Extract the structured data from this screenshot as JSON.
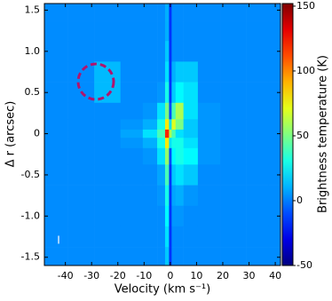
{
  "chart_data": {
    "type": "heatmap",
    "x_label": "Velocity (km s⁻¹)",
    "y_label": "Δ r (arcsec)",
    "colorbar_label": "Brightness temperature (K)",
    "annotation": "I",
    "colormap": "jet",
    "xlim": [
      -48,
      42
    ],
    "ylim": [
      -1.6,
      1.58
    ],
    "clim": [
      -50,
      152
    ],
    "xticks": [
      -40,
      -30,
      -20,
      -10,
      0,
      10,
      20,
      30,
      40
    ],
    "yticks": [
      1.5,
      {
        "value": 1,
        "label": "1.0"
      },
      0.5,
      0,
      -0.5,
      {
        "value": -1,
        "label": "-1.0"
      },
      -1.5
    ],
    "cticks": [
      -50,
      0,
      50,
      100,
      150
    ],
    "x": [
      -44,
      -34,
      -24,
      -14,
      -7,
      -3,
      -1,
      0,
      1,
      3,
      7,
      14,
      24,
      34,
      41
    ],
    "y": [
      1.5,
      1.25,
      1.0,
      0.75,
      0.5,
      0.25,
      0.1,
      0,
      -0.1,
      -0.25,
      -0.5,
      -0.75,
      -1.0,
      -1.25,
      -1.5
    ],
    "z": [
      [
        3,
        3,
        3,
        3,
        3,
        3,
        10,
        -15,
        3,
        3,
        3,
        3,
        3,
        3,
        3
      ],
      [
        3,
        3,
        3,
        3,
        3,
        3,
        10,
        -15,
        3,
        3,
        3,
        3,
        3,
        3,
        3
      ],
      [
        3,
        3,
        3,
        3,
        3,
        3,
        15,
        -15,
        3,
        3,
        3,
        3,
        3,
        3,
        3
      ],
      [
        3,
        3,
        12,
        3,
        3,
        3,
        20,
        -15,
        10,
        15,
        15,
        3,
        3,
        3,
        3
      ],
      [
        3,
        3,
        12,
        3,
        3,
        5,
        30,
        -15,
        15,
        25,
        20,
        3,
        3,
        3,
        3
      ],
      [
        3,
        3,
        3,
        3,
        5,
        20,
        50,
        -10,
        40,
        60,
        20,
        5,
        3,
        3,
        3
      ],
      [
        3,
        3,
        3,
        5,
        10,
        30,
        80,
        20,
        70,
        50,
        15,
        5,
        3,
        3,
        3
      ],
      [
        3,
        3,
        3,
        8,
        20,
        40,
        120,
        60,
        40,
        20,
        15,
        5,
        3,
        3,
        3
      ],
      [
        3,
        3,
        3,
        5,
        10,
        30,
        80,
        20,
        30,
        30,
        20,
        5,
        3,
        3,
        3
      ],
      [
        3,
        3,
        3,
        3,
        5,
        20,
        55,
        -10,
        25,
        30,
        25,
        5,
        3,
        3,
        3
      ],
      [
        3,
        3,
        3,
        3,
        3,
        8,
        40,
        -15,
        15,
        20,
        15,
        3,
        3,
        3,
        3
      ],
      [
        3,
        3,
        3,
        3,
        3,
        5,
        30,
        -15,
        8,
        10,
        5,
        3,
        3,
        3,
        3
      ],
      [
        3,
        3,
        3,
        3,
        3,
        3,
        25,
        -15,
        5,
        5,
        3,
        3,
        3,
        3,
        3
      ],
      [
        3,
        3,
        3,
        3,
        3,
        3,
        20,
        -15,
        3,
        3,
        3,
        3,
        3,
        3,
        3
      ],
      [
        3,
        3,
        3,
        3,
        3,
        3,
        15,
        -15,
        3,
        3,
        3,
        3,
        3,
        3,
        3
      ]
    ]
  }
}
